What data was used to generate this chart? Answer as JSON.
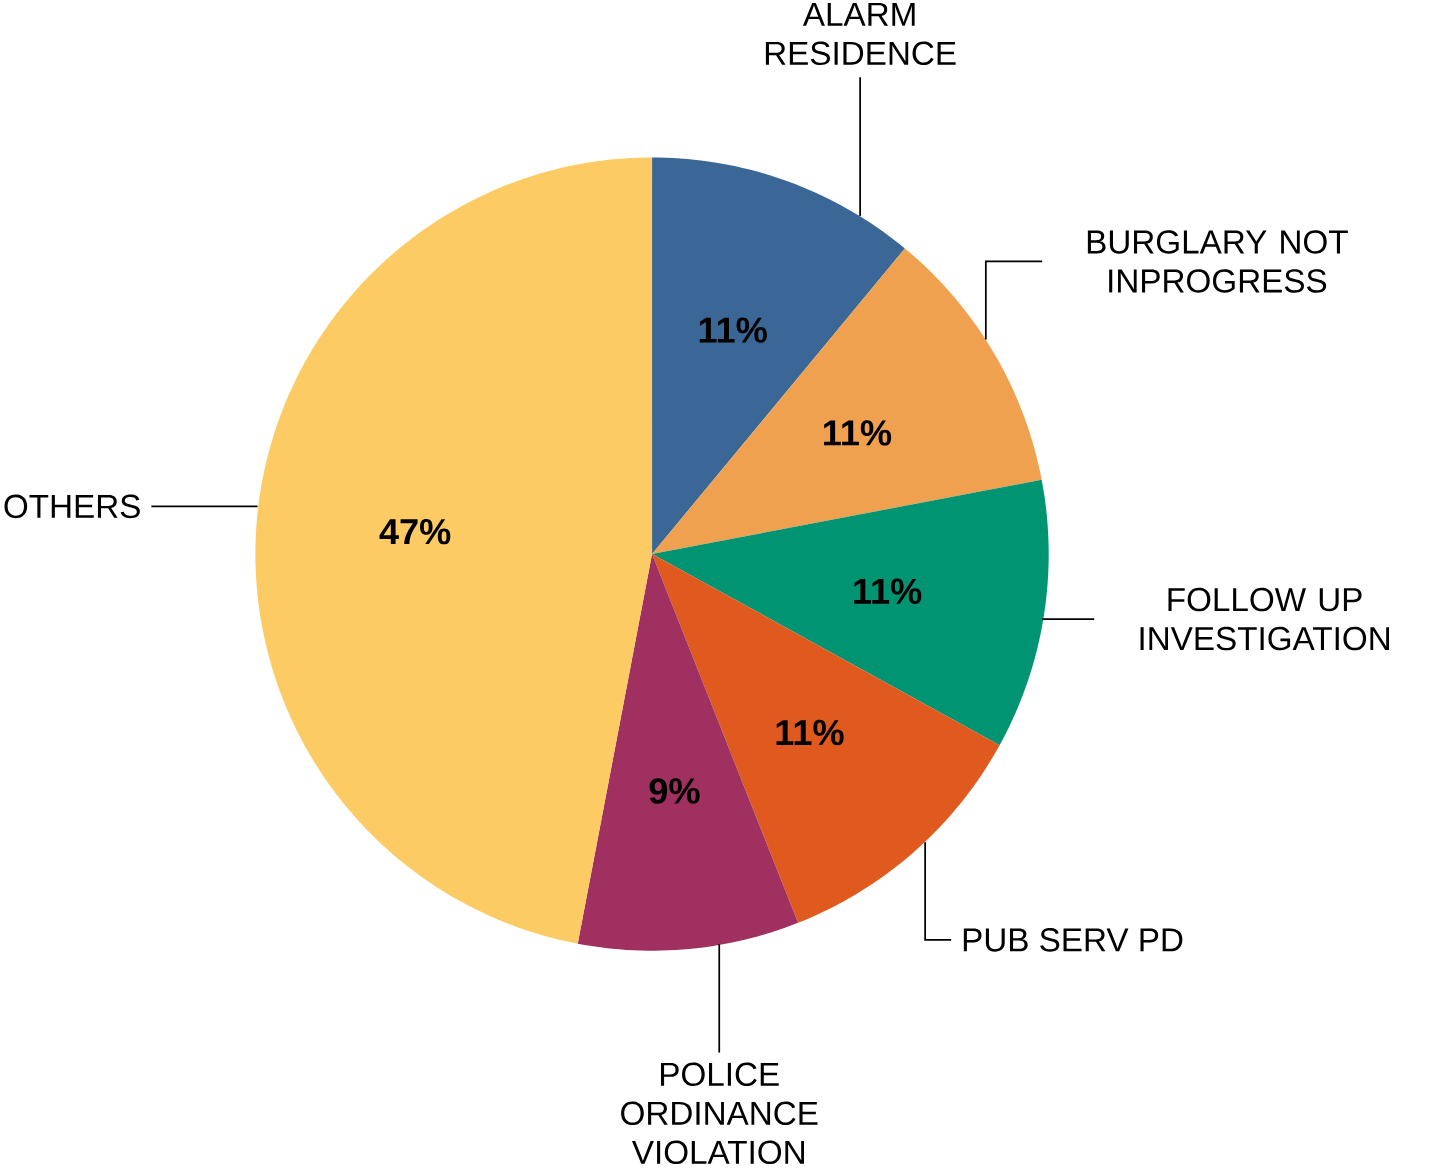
{
  "chart_data": {
    "type": "pie",
    "categories": [
      "ALARM RESIDENCE",
      "BURGLARY NOT INPROGRESS",
      "FOLLOW UP INVESTIGATION",
      "PUB SERV PD",
      "POLICE ORDINANCE VIOLATION",
      "OTHERS"
    ],
    "values": [
      11,
      11,
      11,
      11,
      9,
      47
    ],
    "colors": [
      "#3a6796",
      "#f0a150",
      "#009473",
      "#e05a1f",
      "#a03060",
      "#fccb63"
    ],
    "value_labels": [
      "11%",
      "11%",
      "11%",
      "11%",
      "9%",
      "47%"
    ]
  }
}
